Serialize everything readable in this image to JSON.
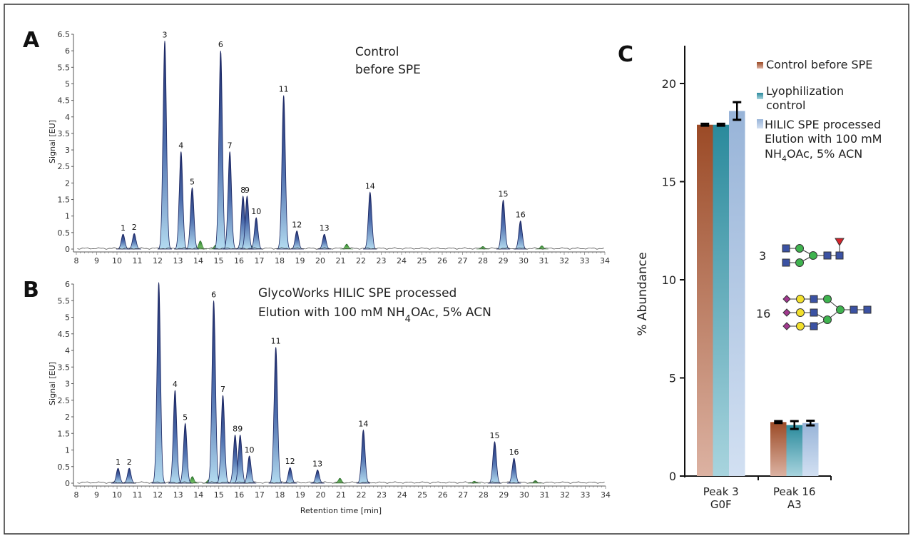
{
  "panels": {
    "a": "A",
    "b": "B",
    "c": "C"
  },
  "chart_data": [
    {
      "type": "line",
      "panel": "A",
      "annotation": [
        "Control",
        "before SPE"
      ],
      "xlabel": "",
      "ylabel": "Signal [EU]",
      "xlim": [
        8,
        34
      ],
      "ylim": [
        0,
        6.5
      ],
      "xticks": [
        8,
        9,
        10,
        11,
        12,
        13,
        14,
        15,
        16,
        17,
        18,
        19,
        20,
        21,
        22,
        23,
        24,
        25,
        26,
        27,
        28,
        29,
        30,
        31,
        32,
        33,
        34
      ],
      "yticks": [
        "0",
        "0.5",
        "1",
        "1.5",
        "2",
        "2.5",
        "3",
        "3.5",
        "4",
        "4.5",
        "5",
        "5.5",
        "6",
        "6.5"
      ],
      "peaks": [
        {
          "label": "1",
          "rt": 10.3,
          "signal": 0.45
        },
        {
          "label": "2",
          "rt": 10.85,
          "signal": 0.47
        },
        {
          "label": "3",
          "rt": 12.35,
          "signal": 6.3
        },
        {
          "label": "4",
          "rt": 13.15,
          "signal": 2.95
        },
        {
          "label": "5",
          "rt": 13.7,
          "signal": 1.85
        },
        {
          "label": "6",
          "rt": 15.1,
          "signal": 6.0
        },
        {
          "label": "7",
          "rt": 15.55,
          "signal": 2.95
        },
        {
          "label": "8",
          "rt": 16.2,
          "signal": 1.6
        },
        {
          "label": "9",
          "rt": 16.4,
          "signal": 1.6
        },
        {
          "label": "10",
          "rt": 16.85,
          "signal": 0.95
        },
        {
          "label": "11",
          "rt": 18.2,
          "signal": 4.65
        },
        {
          "label": "12",
          "rt": 18.85,
          "signal": 0.55
        },
        {
          "label": "13",
          "rt": 20.2,
          "signal": 0.45
        },
        {
          "label": "14",
          "rt": 22.45,
          "signal": 1.72
        },
        {
          "label": "15",
          "rt": 29.0,
          "signal": 1.48
        },
        {
          "label": "16",
          "rt": 29.85,
          "signal": 0.85
        }
      ],
      "minor_peaks": [
        {
          "rt": 14.1,
          "signal": 0.25
        },
        {
          "rt": 14.85,
          "signal": 0.12
        },
        {
          "rt": 16.6,
          "signal": 0.1
        },
        {
          "rt": 21.3,
          "signal": 0.15
        },
        {
          "rt": 28.0,
          "signal": 0.08
        },
        {
          "rt": 30.9,
          "signal": 0.1
        }
      ]
    },
    {
      "type": "line",
      "panel": "B",
      "annotation": [
        "GlycoWorks HILIC SPE processed",
        "Elution with 100 mM  NH",
        "4",
        "OAc, 5% ACN"
      ],
      "xlabel": "Retention time [min]",
      "ylabel": "Signal [EU]",
      "xlim": [
        8,
        34
      ],
      "ylim": [
        0,
        6
      ],
      "xticks": [
        8,
        9,
        10,
        11,
        12,
        13,
        14,
        15,
        16,
        17,
        18,
        19,
        20,
        21,
        22,
        23,
        24,
        25,
        26,
        27,
        28,
        29,
        30,
        31,
        32,
        33,
        34
      ],
      "yticks": [
        "0",
        "0.5",
        "1",
        "1.5",
        "2",
        "2.5",
        "3",
        "3.5",
        "4",
        "4.5",
        "5",
        "5.5",
        "6"
      ],
      "peaks": [
        {
          "label": "1",
          "rt": 10.05,
          "signal": 0.45
        },
        {
          "label": "2",
          "rt": 10.6,
          "signal": 0.45
        },
        {
          "label": "",
          "rt": 12.05,
          "signal": 6.05
        },
        {
          "label": "4",
          "rt": 12.85,
          "signal": 2.8
        },
        {
          "label": "5",
          "rt": 13.35,
          "signal": 1.8
        },
        {
          "label": "6",
          "rt": 14.75,
          "signal": 5.5
        },
        {
          "label": "7",
          "rt": 15.2,
          "signal": 2.65
        },
        {
          "label": "8",
          "rt": 15.8,
          "signal": 1.45
        },
        {
          "label": "9",
          "rt": 16.05,
          "signal": 1.45
        },
        {
          "label": "10",
          "rt": 16.5,
          "signal": 0.82
        },
        {
          "label": "11",
          "rt": 17.8,
          "signal": 4.1
        },
        {
          "label": "12",
          "rt": 18.5,
          "signal": 0.47
        },
        {
          "label": "13",
          "rt": 19.85,
          "signal": 0.4
        },
        {
          "label": "14",
          "rt": 22.1,
          "signal": 1.6
        },
        {
          "label": "15",
          "rt": 28.55,
          "signal": 1.25
        },
        {
          "label": "16",
          "rt": 29.5,
          "signal": 0.75
        }
      ],
      "minor_peaks": [
        {
          "rt": 13.7,
          "signal": 0.2
        },
        {
          "rt": 14.5,
          "signal": 0.1
        },
        {
          "rt": 20.95,
          "signal": 0.15
        },
        {
          "rt": 27.55,
          "signal": 0.06
        },
        {
          "rt": 30.55,
          "signal": 0.08
        }
      ]
    },
    {
      "type": "bar",
      "panel": "C",
      "ylabel": "% Abundance",
      "ylim": [
        0,
        22
      ],
      "yticks": [
        "0",
        "5",
        "10",
        "15",
        "20"
      ],
      "categories": [
        [
          "Peak 3",
          "G0F"
        ],
        [
          "Peak 16",
          "A3"
        ]
      ],
      "series": [
        {
          "name": "Control before SPE",
          "legend_lines": [
            "Control before SPE"
          ],
          "color": "#9b4a26",
          "values": [
            17.9,
            2.75
          ],
          "errors": [
            0.05,
            0.05
          ]
        },
        {
          "name": "Lyophilization control",
          "legend_lines": [
            "Lyophilization",
            "control"
          ],
          "color": "#2a8a9c",
          "values": [
            17.9,
            2.6
          ],
          "errors": [
            0.05,
            0.2
          ]
        },
        {
          "name": "HILIC SPE processed Elution with 100 mM NH4OAc, 5% ACN",
          "legend_lines": [
            "HILIC SPE processed",
            "Elution with 100 mM",
            "NH",
            "4",
            "OAc, 5% ACN"
          ],
          "color": "#98b4d8",
          "values": [
            18.6,
            2.7
          ],
          "errors": [
            0.45,
            0.12
          ]
        }
      ],
      "glycans": [
        {
          "label": "3"
        },
        {
          "label": "16"
        }
      ]
    }
  ]
}
